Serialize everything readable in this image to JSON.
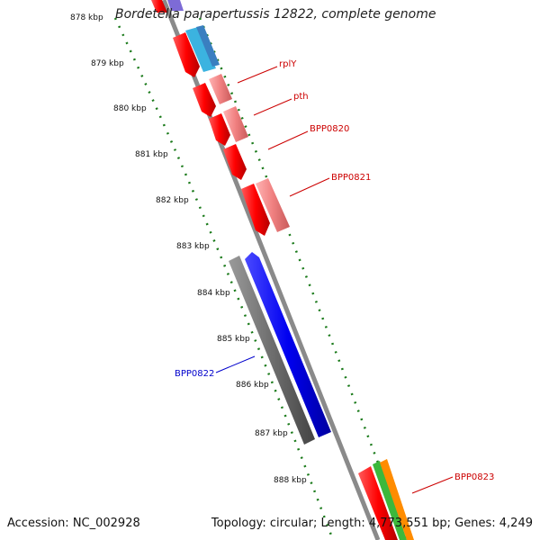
{
  "title": "Bordetella parapertussis 12822, complete genome",
  "footer": {
    "accession": "Accession: NC_002928",
    "summary": "Topology: circular; Length: 4,773,551 bp; Genes: 4,249"
  },
  "colors": {
    "gene_label_red": "#cc0000",
    "gene_label_blue": "#0000cc",
    "tick_green": "#1a7a1a",
    "backbone": "#8a8a8a"
  },
  "kbp_labels": [
    "878 kbp",
    "879 kbp",
    "880 kbp",
    "881 kbp",
    "882 kbp",
    "883 kbp",
    "884 kbp",
    "885 kbp",
    "886 kbp",
    "887 kbp",
    "888 kbp"
  ],
  "gene_labels": [
    {
      "text": "rplY",
      "color": "red"
    },
    {
      "text": "pth",
      "color": "red"
    },
    {
      "text": "BPP0820",
      "color": "red"
    },
    {
      "text": "BPP0821",
      "color": "red"
    },
    {
      "text": "BPP0822",
      "color": "blue"
    },
    {
      "text": "BPP0823",
      "color": "red"
    }
  ]
}
